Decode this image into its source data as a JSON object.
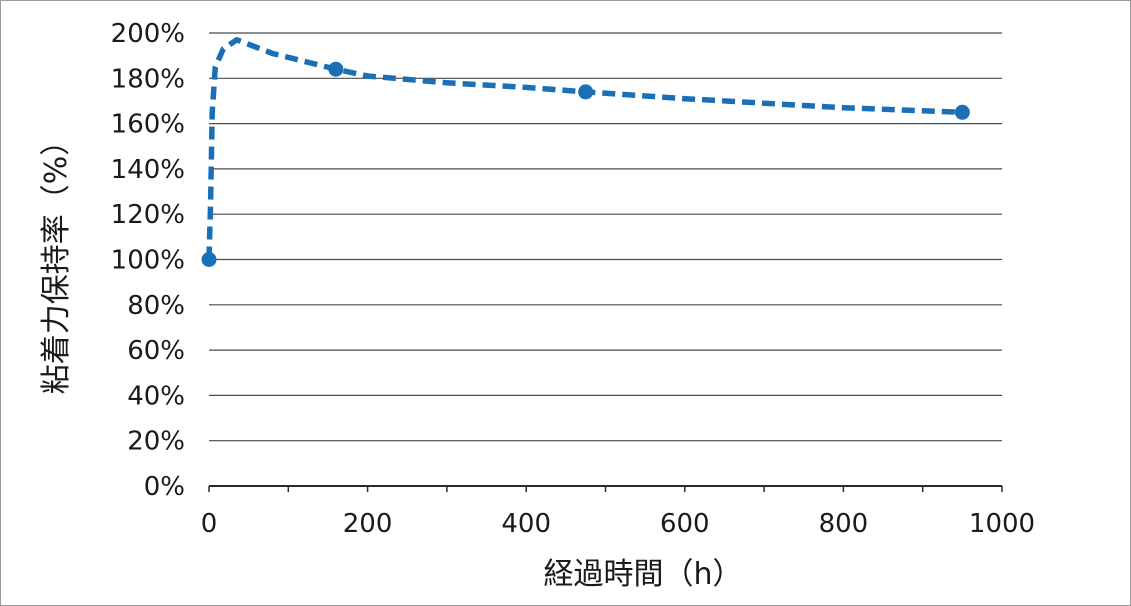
{
  "chart_data": {
    "type": "line",
    "xlabel": "経過時間（h）",
    "ylabel": "粘着力保持率（%）",
    "xlim": [
      0,
      1000
    ],
    "ylim": [
      0,
      200
    ],
    "x_ticks": [
      "0",
      "200",
      "400",
      "600",
      "800",
      "1000"
    ],
    "y_ticks": [
      "0%",
      "20%",
      "40%",
      "60%",
      "80%",
      "100%",
      "120%",
      "140%",
      "160%",
      "180%",
      "200%"
    ],
    "grid": "horizontal",
    "line_style": "dashed",
    "color": "#1a6fb6",
    "series": [
      {
        "points": [
          {
            "x": 0,
            "y": 100
          },
          {
            "x": 160,
            "y": 184
          },
          {
            "x": 475,
            "y": 174
          },
          {
            "x": 950,
            "y": 165
          }
        ],
        "curve": [
          {
            "x": 0,
            "y": 100
          },
          {
            "x": 2,
            "y": 125
          },
          {
            "x": 4,
            "y": 165
          },
          {
            "x": 8,
            "y": 185
          },
          {
            "x": 18,
            "y": 193
          },
          {
            "x": 35,
            "y": 197
          },
          {
            "x": 80,
            "y": 191
          },
          {
            "x": 160,
            "y": 184
          },
          {
            "x": 200,
            "y": 181
          },
          {
            "x": 300,
            "y": 178
          },
          {
            "x": 400,
            "y": 176
          },
          {
            "x": 475,
            "y": 174
          },
          {
            "x": 600,
            "y": 171
          },
          {
            "x": 700,
            "y": 169
          },
          {
            "x": 800,
            "y": 167
          },
          {
            "x": 950,
            "y": 165
          }
        ]
      }
    ]
  }
}
